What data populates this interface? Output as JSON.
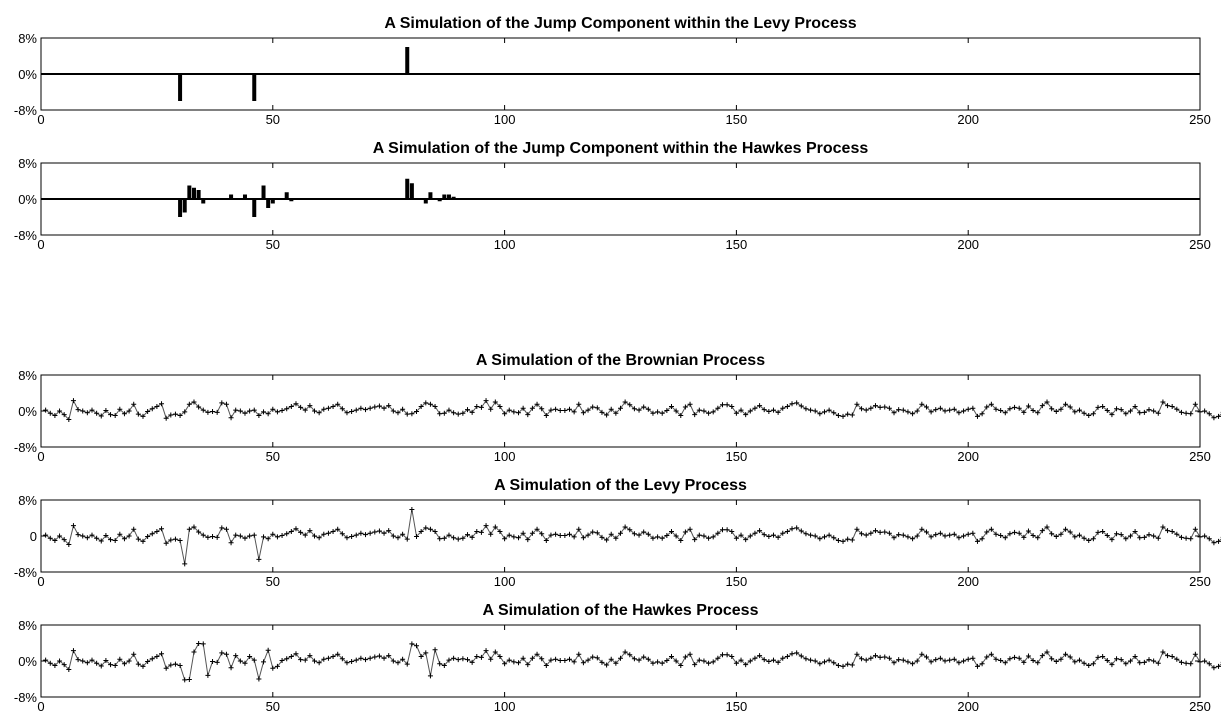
{
  "colors": {
    "background": "#ffffff",
    "axis": "#000000",
    "bar": "#000000",
    "line": "#555555",
    "marker": "#000000"
  },
  "chart_data": [
    {
      "type": "bar",
      "title": "A Simulation of the Jump Component within the Levy Process",
      "xlim": [
        0,
        250
      ],
      "ylim": [
        -8,
        8
      ],
      "xticks": [
        0,
        50,
        100,
        150,
        200,
        250
      ],
      "xtick_labels": [
        "0",
        "50",
        "100",
        "150",
        "200",
        "250"
      ],
      "yticks": [
        -8,
        0,
        8
      ],
      "ytick_labels": [
        "-8%",
        "0%",
        "8%"
      ],
      "x": [
        30,
        46,
        79
      ],
      "values": [
        -6,
        -6,
        6
      ]
    },
    {
      "type": "bar",
      "title": "A Simulation of the Jump Component within the Hawkes Process",
      "xlim": [
        0,
        250
      ],
      "ylim": [
        -8,
        8
      ],
      "xticks": [
        0,
        50,
        100,
        150,
        200,
        250
      ],
      "xtick_labels": [
        "0",
        "50",
        "100",
        "150",
        "200",
        "250"
      ],
      "yticks": [
        -8,
        0,
        8
      ],
      "ytick_labels": [
        "-8%",
        "0%",
        "8%"
      ],
      "x": [
        30,
        31,
        32,
        33,
        34,
        35,
        41,
        44,
        46,
        48,
        49,
        50,
        53,
        54,
        79,
        80,
        83,
        84,
        86,
        87,
        88,
        89
      ],
      "values": [
        -4,
        -3,
        3,
        2.5,
        2,
        -1,
        1,
        1,
        -4,
        3,
        -2,
        -1,
        1.5,
        -0.5,
        4.5,
        3.5,
        -1,
        1.5,
        -0.5,
        1,
        1,
        0.5
      ]
    },
    {
      "type": "line",
      "title": "A Simulation of the Brownian Process",
      "xlim": [
        0,
        250
      ],
      "ylim": [
        -8,
        8
      ],
      "xticks": [
        0,
        50,
        100,
        150,
        200,
        250
      ],
      "xtick_labels": [
        "0",
        "50",
        "100",
        "150",
        "200",
        "250"
      ],
      "yticks": [
        -8,
        0,
        8
      ],
      "ytick_labels": [
        "-8%",
        "0%",
        "8%"
      ],
      "values": [
        0.2,
        -0.5,
        -1.0,
        0.0,
        -0.8,
        -1.9,
        2.3,
        0.3,
        0.0,
        -0.4,
        0.2,
        -0.5,
        -1.1,
        0.1,
        -0.8,
        -1.0,
        0.4,
        -0.6,
        0.0,
        1.5,
        -0.7,
        -1.2,
        -0.1,
        0.5,
        1.0,
        1.6,
        -1.6,
        -0.9,
        -0.7,
        -1.0,
        -0.2,
        1.5,
        2.0,
        0.9,
        0.2,
        -0.3,
        -0.1,
        -0.3,
        1.8,
        1.5,
        -1.5,
        0.2,
        0.0,
        -0.5,
        0.0,
        0.2,
        -1.0,
        -0.2,
        -0.6,
        0.4,
        -0.2,
        0.1,
        0.5,
        1.0,
        1.6,
        0.8,
        0.2,
        1.2,
        0.0,
        -0.4,
        0.4,
        0.6,
        1.0,
        1.5,
        0.5,
        -0.4,
        -0.1,
        0.2,
        0.6,
        0.3,
        0.6,
        0.9,
        1.1,
        0.6,
        1.2,
        0.0,
        -0.4,
        0.4,
        -0.7,
        -0.6,
        -0.1,
        1.0,
        1.8,
        1.5,
        1.0,
        -0.6,
        -0.5,
        0.2,
        -0.4,
        -0.7,
        -0.5,
        0.3,
        -0.3,
        1.0,
        0.8,
        2.3,
        0.4,
        2.0,
        1.0,
        -0.6,
        0.2,
        -0.2,
        -0.4,
        0.6,
        -0.8,
        0.6,
        1.5,
        0.5,
        -1.0,
        0.2,
        0.4,
        0.1,
        0.1,
        0.4,
        -0.2,
        1.5,
        -0.4,
        0.2,
        0.9,
        0.7,
        -0.3,
        -0.9,
        0.4,
        -0.5,
        0.6,
        2.0,
        1.4,
        0.5,
        0.2,
        0.9,
        0.4,
        -0.5,
        -0.2,
        -0.5,
        0.1,
        1.0,
        0.0,
        -1.0,
        0.9,
        1.5,
        -0.8,
        0.2,
        0.0,
        -0.5,
        -0.2,
        0.6,
        1.4,
        1.4,
        1.0,
        -0.5,
        0.2,
        -0.8,
        0.0,
        0.6,
        1.2,
        0.3,
        -0.1,
        0.2,
        -0.3,
        0.6,
        1.0,
        1.6,
        1.8,
        1.1,
        0.5,
        0.2,
        0.0,
        -0.6,
        -0.2,
        0.2,
        -0.4,
        -1.0,
        -1.2,
        -0.7,
        -0.9,
        1.5,
        0.5,
        0.2,
        0.6,
        1.2,
        0.8,
        0.9,
        0.6,
        -0.4,
        0.3,
        0.2,
        -0.2,
        -0.6,
        0.0,
        1.5,
        0.9,
        -0.2,
        0.3,
        0.6,
        0.0,
        0.2,
        0.4,
        -0.4,
        0.0,
        0.4,
        0.6,
        -1.2,
        -0.6,
        0.9,
        1.5,
        0.4,
        0.1,
        -0.4,
        0.5,
        0.8,
        0.6,
        -0.3,
        1.1,
        0.1,
        -0.4,
        1.2,
        2.0,
        0.5,
        -0.1,
        0.4,
        1.5,
        0.9,
        -0.2,
        0.2,
        -0.5,
        -1.0,
        -0.6,
        0.8,
        1.0,
        0.1,
        -0.8,
        0.5,
        0.3,
        -0.6,
        0.0,
        1.0,
        -0.4,
        -0.3,
        0.3,
        0.0,
        -0.5,
        2.0,
        1.2,
        1.0,
        0.4,
        -0.3,
        -0.5,
        -0.6,
        1.5,
        -0.2,
        0.0,
        -0.6,
        -1.5,
        -1.2,
        -0.3,
        -0.1
      ]
    },
    {
      "type": "line",
      "title": "A Simulation of the Levy Process",
      "xlim": [
        0,
        250
      ],
      "ylim": [
        -8,
        8
      ],
      "xticks": [
        0,
        50,
        100,
        150,
        200,
        250
      ],
      "xtick_labels": [
        "0",
        "50",
        "100",
        "150",
        "200",
        "250"
      ],
      "yticks": [
        -8,
        0,
        8
      ],
      "ytick_labels": [
        "-8%",
        "0",
        "8%"
      ],
      "values": [
        0.2,
        -0.5,
        -1.0,
        0.0,
        -0.8,
        -1.9,
        2.3,
        0.3,
        0.0,
        -0.4,
        0.2,
        -0.5,
        -1.1,
        0.1,
        -0.8,
        -1.0,
        0.4,
        -0.6,
        0.0,
        1.5,
        -0.7,
        -1.2,
        -0.1,
        0.5,
        1.0,
        1.6,
        -1.6,
        -0.9,
        -0.7,
        -1.0,
        -6.2,
        1.5,
        2.0,
        0.9,
        0.2,
        -0.3,
        -0.1,
        -0.3,
        1.8,
        1.5,
        -1.5,
        0.2,
        0.0,
        -0.5,
        0.0,
        0.2,
        -5.2,
        -0.2,
        -0.6,
        0.4,
        -0.2,
        0.1,
        0.5,
        1.0,
        1.6,
        0.8,
        0.2,
        1.2,
        0.0,
        -0.4,
        0.4,
        0.6,
        1.0,
        1.5,
        0.5,
        -0.4,
        -0.1,
        0.2,
        0.6,
        0.3,
        0.6,
        0.9,
        1.1,
        0.6,
        1.2,
        0.0,
        -0.4,
        0.4,
        -0.7,
        5.9,
        -0.1,
        1.0,
        1.8,
        1.5,
        1.0,
        -0.6,
        -0.5,
        0.2,
        -0.4,
        -0.7,
        -0.5,
        0.3,
        -0.3,
        1.0,
        0.8,
        2.3,
        0.4,
        2.0,
        1.0,
        -0.6,
        0.2,
        -0.2,
        -0.4,
        0.6,
        -0.8,
        0.6,
        1.5,
        0.5,
        -1.0,
        0.2,
        0.4,
        0.1,
        0.1,
        0.4,
        -0.2,
        1.5,
        -0.4,
        0.2,
        0.9,
        0.7,
        -0.3,
        -0.9,
        0.4,
        -0.5,
        0.6,
        2.0,
        1.4,
        0.5,
        0.2,
        0.9,
        0.4,
        -0.5,
        -0.2,
        -0.5,
        0.1,
        1.0,
        0.0,
        -1.0,
        0.9,
        1.5,
        -0.8,
        0.2,
        0.0,
        -0.5,
        -0.2,
        0.6,
        1.4,
        1.4,
        1.0,
        -0.5,
        0.2,
        -0.8,
        0.0,
        0.6,
        1.2,
        0.3,
        -0.1,
        0.2,
        -0.3,
        0.6,
        1.0,
        1.6,
        1.8,
        1.1,
        0.5,
        0.2,
        0.0,
        -0.6,
        -0.2,
        0.2,
        -0.4,
        -1.0,
        -1.2,
        -0.7,
        -0.9,
        1.5,
        0.5,
        0.2,
        0.6,
        1.2,
        0.8,
        0.9,
        0.6,
        -0.4,
        0.3,
        0.2,
        -0.2,
        -0.6,
        0.0,
        1.5,
        0.9,
        -0.2,
        0.3,
        0.6,
        0.0,
        0.2,
        0.4,
        -0.4,
        0.0,
        0.4,
        0.6,
        -1.2,
        -0.6,
        0.9,
        1.5,
        0.4,
        0.1,
        -0.4,
        0.5,
        0.8,
        0.6,
        -0.3,
        1.1,
        0.1,
        -0.4,
        1.2,
        2.0,
        0.5,
        -0.1,
        0.4,
        1.5,
        0.9,
        -0.2,
        0.2,
        -0.5,
        -1.0,
        -0.6,
        0.8,
        1.0,
        0.1,
        -0.8,
        0.5,
        0.3,
        -0.6,
        0.0,
        1.0,
        -0.4,
        -0.3,
        0.3,
        0.0,
        -0.5,
        2.0,
        1.2,
        1.0,
        0.4,
        -0.3,
        -0.5,
        -0.6,
        1.5,
        -0.2,
        0.0,
        -0.6,
        -1.5,
        -1.2,
        -0.3,
        -0.1
      ]
    },
    {
      "type": "line",
      "title": "A Simulation of the Hawkes Process",
      "xlim": [
        0,
        250
      ],
      "ylim": [
        -8,
        8
      ],
      "xticks": [
        0,
        50,
        100,
        150,
        200,
        250
      ],
      "xtick_labels": [
        "0",
        "50",
        "100",
        "150",
        "200",
        "250"
      ],
      "yticks": [
        -8,
        0,
        8
      ],
      "ytick_labels": [
        "-8%",
        "0%",
        "8%"
      ],
      "values": [
        0.2,
        -0.5,
        -1.0,
        0.0,
        -0.8,
        -1.9,
        2.3,
        0.3,
        0.0,
        -0.4,
        0.2,
        -0.5,
        -1.1,
        0.1,
        -0.8,
        -1.0,
        0.4,
        -0.6,
        0.0,
        1.5,
        -0.7,
        -1.2,
        -0.1,
        0.5,
        1.0,
        1.6,
        -1.6,
        -0.9,
        -0.7,
        -1.0,
        -4.2,
        -4.1,
        2.0,
        3.9,
        3.8,
        -3.2,
        -0.1,
        -0.3,
        1.8,
        1.5,
        -1.5,
        1.2,
        0.0,
        -0.5,
        1.0,
        0.2,
        -4.0,
        -0.2,
        2.4,
        -1.6,
        -1.2,
        0.1,
        0.5,
        1.0,
        1.6,
        0.3,
        0.2,
        1.2,
        0.0,
        -0.4,
        0.4,
        0.6,
        1.0,
        1.5,
        0.5,
        -0.4,
        -0.1,
        0.2,
        0.6,
        0.3,
        0.6,
        0.9,
        1.1,
        0.6,
        1.2,
        0.0,
        -0.4,
        0.4,
        -0.7,
        3.8,
        3.4,
        1.0,
        1.8,
        -3.3,
        2.5,
        -0.6,
        -1.0,
        0.2,
        0.6,
        0.3,
        0.5,
        0.3,
        -0.3,
        1.0,
        0.8,
        2.3,
        0.4,
        2.0,
        1.0,
        -0.6,
        0.2,
        -0.2,
        -0.4,
        0.6,
        -0.8,
        0.6,
        1.5,
        0.5,
        -1.0,
        0.2,
        0.4,
        0.1,
        0.1,
        0.4,
        -0.2,
        1.5,
        -0.4,
        0.2,
        0.9,
        0.7,
        -0.3,
        -0.9,
        0.4,
        -0.5,
        0.6,
        2.0,
        1.4,
        0.5,
        0.2,
        0.9,
        0.4,
        -0.5,
        -0.2,
        -0.5,
        0.1,
        1.0,
        0.0,
        -1.0,
        0.9,
        1.5,
        -0.8,
        0.2,
        0.0,
        -0.5,
        -0.2,
        0.6,
        1.4,
        1.4,
        1.0,
        -0.5,
        0.2,
        -0.8,
        0.0,
        0.6,
        1.2,
        0.3,
        -0.1,
        0.2,
        -0.3,
        0.6,
        1.0,
        1.6,
        1.8,
        1.1,
        0.5,
        0.2,
        0.0,
        -0.6,
        -0.2,
        0.2,
        -0.4,
        -1.0,
        -1.2,
        -0.7,
        -0.9,
        1.5,
        0.5,
        0.2,
        0.6,
        1.2,
        0.8,
        0.9,
        0.6,
        -0.4,
        0.3,
        0.2,
        -0.2,
        -0.6,
        0.0,
        1.5,
        0.9,
        -0.2,
        0.3,
        0.6,
        0.0,
        0.2,
        0.4,
        -0.4,
        0.0,
        0.4,
        0.6,
        -1.2,
        -0.6,
        0.9,
        1.5,
        0.4,
        0.1,
        -0.4,
        0.5,
        0.8,
        0.6,
        -0.3,
        1.1,
        0.1,
        -0.4,
        1.2,
        2.0,
        0.5,
        -0.1,
        0.4,
        1.5,
        0.9,
        -0.2,
        0.2,
        -0.5,
        -1.0,
        -0.6,
        0.8,
        1.0,
        0.1,
        -0.8,
        0.5,
        0.3,
        -0.6,
        0.0,
        1.0,
        -0.4,
        -0.3,
        0.3,
        0.0,
        -0.5,
        2.0,
        1.2,
        1.0,
        0.4,
        -0.3,
        -0.5,
        -0.6,
        1.5,
        -0.2,
        0.0,
        -0.6,
        -1.5,
        -1.2,
        -0.3,
        -0.1
      ]
    }
  ]
}
